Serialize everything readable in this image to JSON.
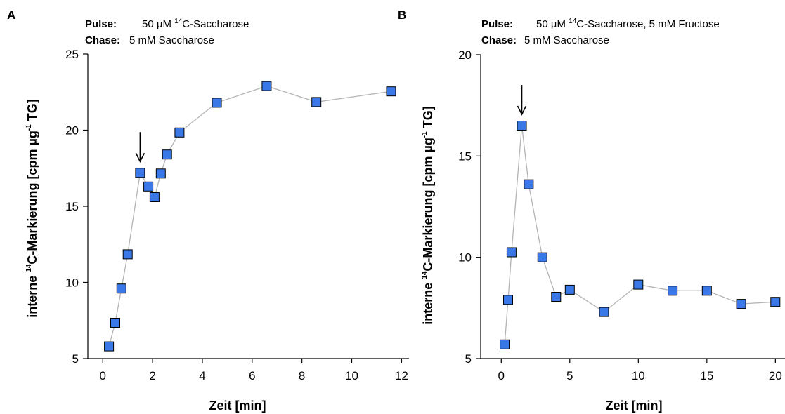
{
  "chart_data": [
    {
      "type": "scatter",
      "panel_label": "A",
      "pulse_label": "Pulse:",
      "pulse_value_pre": "50 µM ",
      "pulse_value_sup": "14",
      "pulse_value_post": "C-Saccharose",
      "chase_label": "Chase:",
      "chase_value": "5 mM Saccharose",
      "xlabel": "Zeit [min]",
      "ylabel_pre": "interne ",
      "ylabel_sup1": "14",
      "ylabel_mid": "C-Markierung [cpm µg",
      "ylabel_sup2": "-1",
      "ylabel_post": " TG]",
      "xlim": [
        -0.6,
        12.3
      ],
      "ylim": [
        5,
        25
      ],
      "xticks": [
        0,
        2,
        4,
        6,
        8,
        10,
        12
      ],
      "yticks": [
        5,
        10,
        15,
        20,
        25
      ],
      "series_color": "#3b78e7",
      "line_color": "#b4b4b4",
      "x": [
        0.25,
        0.5,
        0.75,
        1.0,
        1.5,
        1.83,
        2.08,
        2.33,
        2.58,
        3.08,
        4.58,
        6.58,
        8.58,
        11.58
      ],
      "y": [
        5.8,
        7.35,
        9.6,
        11.85,
        17.2,
        16.3,
        15.6,
        17.15,
        18.4,
        19.85,
        21.8,
        22.9,
        21.85,
        22.55
      ],
      "arrow_x": 1.5
    },
    {
      "type": "scatter",
      "panel_label": "B",
      "pulse_label": "Pulse:",
      "pulse_value_pre": "50 µM ",
      "pulse_value_sup": "14",
      "pulse_value_post": "C-Saccharose, 5 mM Fructose",
      "chase_label": "Chase:",
      "chase_value": "5 mM Saccharose",
      "xlabel": "Zeit [min]",
      "ylabel_pre": "interne ",
      "ylabel_sup1": "14",
      "ylabel_mid": "C-Markierung [cpm µg",
      "ylabel_sup2": "-1",
      "ylabel_post": " TG]",
      "xlim": [
        -1.5,
        20.7
      ],
      "ylim": [
        5,
        20
      ],
      "xticks": [
        0,
        5,
        10,
        15,
        20
      ],
      "yticks": [
        5,
        10,
        15,
        20
      ],
      "series_color": "#3b78e7",
      "line_color": "#b4b4b4",
      "x": [
        0.25,
        0.5,
        0.75,
        1.5,
        2.0,
        3.0,
        4.0,
        5.0,
        7.5,
        10.0,
        12.5,
        15.0,
        17.5,
        20.0
      ],
      "y": [
        5.7,
        7.9,
        10.25,
        16.5,
        13.6,
        10.0,
        8.05,
        8.4,
        7.3,
        8.65,
        8.35,
        8.35,
        7.7,
        7.8
      ],
      "arrow_x": 1.5
    }
  ]
}
